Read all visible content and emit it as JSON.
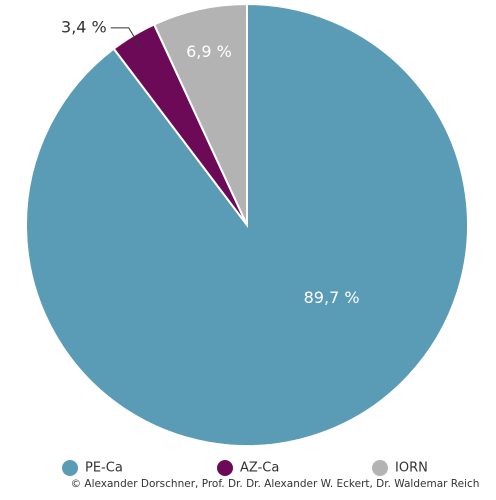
{
  "chart_data": {
    "type": "pie",
    "categories": [
      "PE-Ca",
      "AZ-Ca",
      "IORN"
    ],
    "values": [
      89.7,
      3.4,
      6.9
    ],
    "value_labels": [
      "89,7 %",
      "3,4 %",
      "6,9 %"
    ],
    "colors": [
      "#5a9bb5",
      "#6c0a58",
      "#b3b3b3"
    ],
    "source": "© Alexander Dorschner, Prof. Dr. Dr. Alexander W. Eckert, Dr. Waldemar Reich"
  }
}
